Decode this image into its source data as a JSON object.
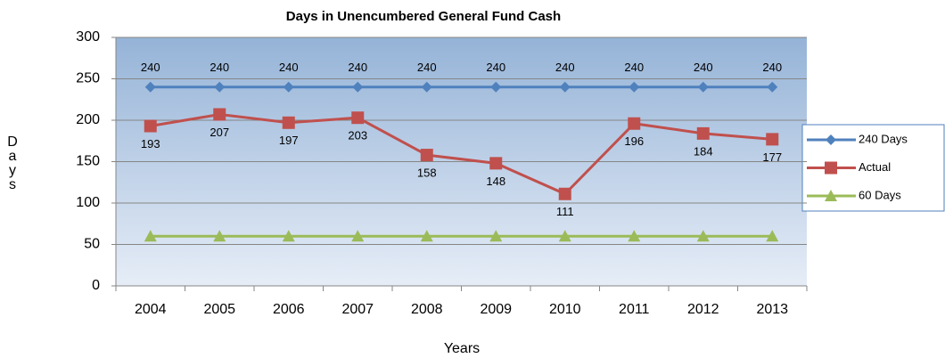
{
  "chart_data": {
    "type": "line",
    "title": "Days in Unencumbered General Fund Cash",
    "x_label": "Years",
    "y_label": "Days",
    "categories": [
      "2004",
      "2005",
      "2006",
      "2007",
      "2008",
      "2009",
      "2010",
      "2011",
      "2012",
      "2013"
    ],
    "series": [
      {
        "name": "240 Days",
        "color": "#4f81bd",
        "marker": "diamond",
        "data_labels": true,
        "values": [
          240,
          240,
          240,
          240,
          240,
          240,
          240,
          240,
          240,
          240
        ]
      },
      {
        "name": "Actual",
        "color": "#c0504d",
        "marker": "square",
        "data_labels": true,
        "values": [
          193,
          207,
          197,
          203,
          158,
          148,
          111,
          196,
          184,
          177
        ]
      },
      {
        "name": "60 Days",
        "color": "#9bbb59",
        "marker": "triangle",
        "data_labels": false,
        "values": [
          60,
          60,
          60,
          60,
          60,
          60,
          60,
          60,
          60,
          60
        ]
      }
    ],
    "ylim": [
      0,
      300
    ],
    "yticks": [
      0,
      50,
      100,
      150,
      200,
      250,
      300
    ],
    "grid": true,
    "legend": "right"
  }
}
